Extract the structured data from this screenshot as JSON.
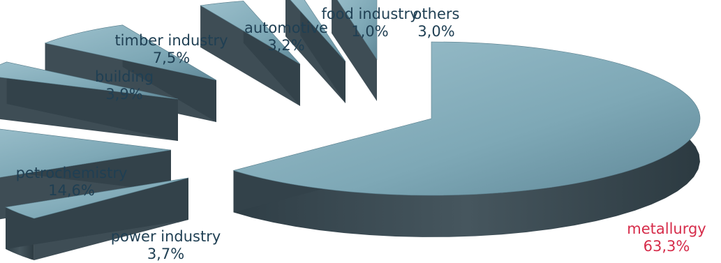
{
  "chart_data": {
    "type": "pie",
    "style": "3d-exploded",
    "title": "",
    "slices": [
      {
        "name": "metallurgy",
        "value": 63.3,
        "value_label": "63,3%",
        "label_color": "#d62c4a",
        "exploded": true
      },
      {
        "name": "power industry",
        "value": 3.7,
        "value_label": "3,7%",
        "label_color": "#1f3f53",
        "exploded": true
      },
      {
        "name": "petrochemistry",
        "value": 14.6,
        "value_label": "14,6%",
        "label_color": "#1f3f53",
        "exploded": true
      },
      {
        "name": "building",
        "value": 3.9,
        "value_label": "3,9%",
        "label_color": "#1f3f53",
        "exploded": true
      },
      {
        "name": "timber industry",
        "value": 7.5,
        "value_label": "7,5%",
        "label_color": "#1f3f53",
        "exploded": true
      },
      {
        "name": "automotive",
        "value": 3.2,
        "value_label": "3,2%",
        "label_color": "#1f3f53",
        "exploded": true
      },
      {
        "name": "food industry",
        "value": 1.0,
        "value_label": "1,0%",
        "label_color": "#1f3f53",
        "exploded": true
      },
      {
        "name": "others",
        "value": 3.0,
        "value_label": "3,0%",
        "label_color": "#1f3f53",
        "exploded": true
      }
    ],
    "colors": {
      "top": "#7faab8",
      "side": "#38474f"
    },
    "legend": "none"
  }
}
